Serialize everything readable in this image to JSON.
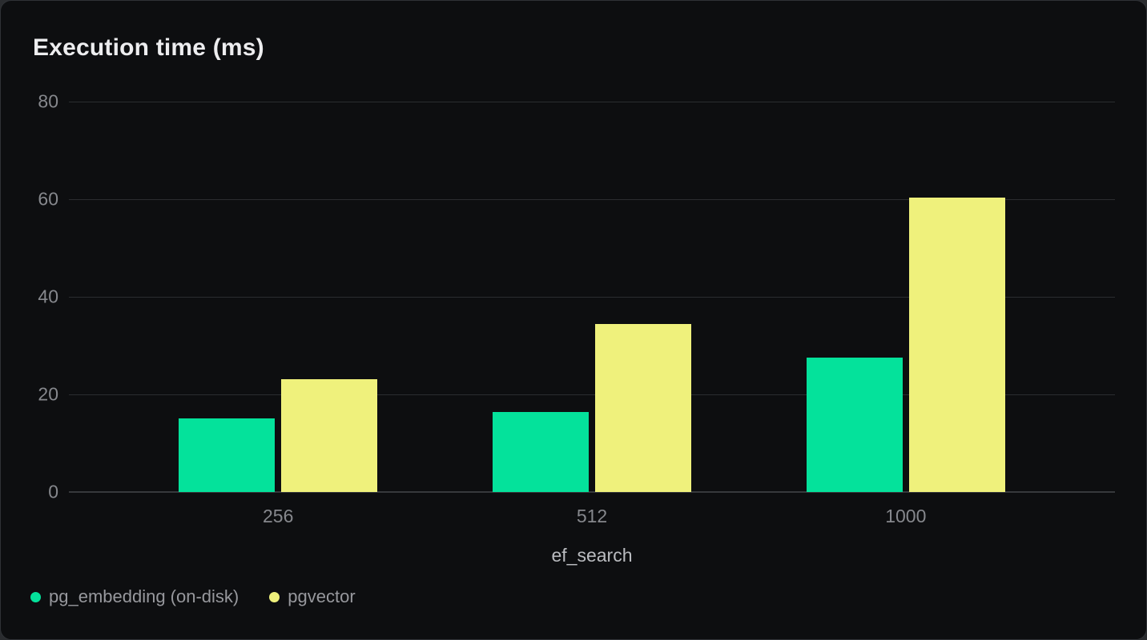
{
  "chart_data": {
    "type": "bar",
    "title": "Execution time (ms)",
    "xlabel": "ef_search",
    "ylabel": "",
    "categories": [
      "256",
      "512",
      "1000"
    ],
    "series": [
      {
        "name": "pg_embedding (on-disk)",
        "color": "#04e29b",
        "values": [
          15.1,
          16.4,
          27.6
        ]
      },
      {
        "name": "pgvector",
        "color": "#eff17c",
        "values": [
          23.1,
          34.5,
          60.4
        ]
      }
    ],
    "ylim": [
      0,
      80
    ],
    "yticks": [
      0,
      20,
      40,
      60,
      80
    ],
    "grid": true,
    "legend_position": "bottom-left"
  },
  "colors": {
    "card_bg": "#0d0e10",
    "outer_bg": "#2a2c2f",
    "grid": "#2b2d30",
    "axis_line": "#37393c",
    "tick_text": "#86888d",
    "axis_label_text": "#babcc0",
    "legend_text": "#97989d",
    "title_text": "#ededef"
  }
}
